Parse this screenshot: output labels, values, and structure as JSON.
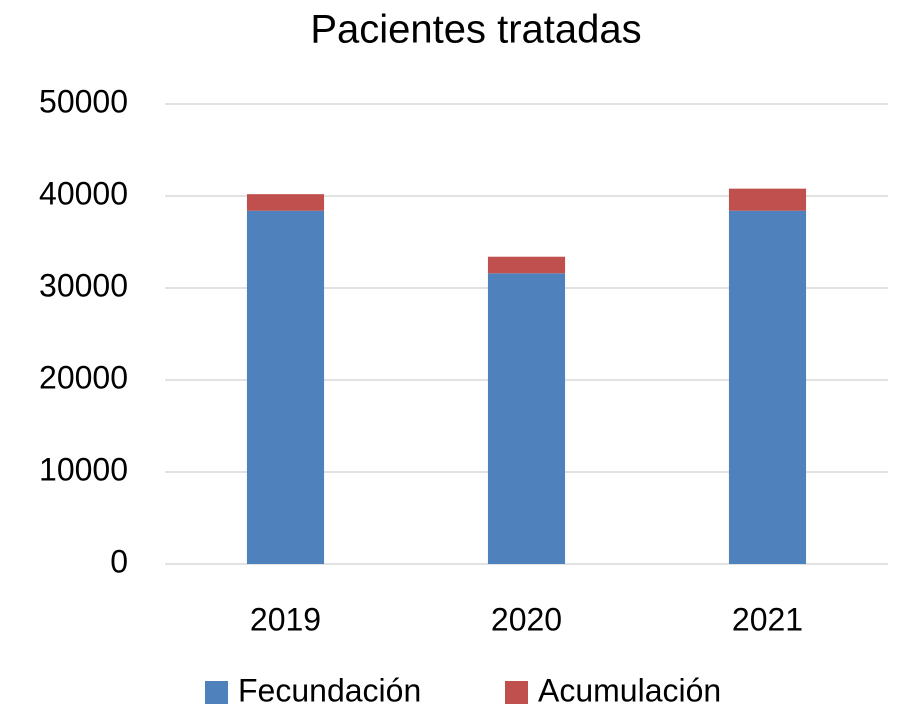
{
  "chart_data": {
    "type": "bar",
    "stacked": true,
    "title": "Pacientes tratadas",
    "categories": [
      "2019",
      "2020",
      "2021"
    ],
    "series": [
      {
        "name": "Fecundación",
        "color": "#4f81bd",
        "values": [
          38400,
          31600,
          38400
        ]
      },
      {
        "name": "Acumulación",
        "color": "#c0504d",
        "values": [
          1800,
          1800,
          2400
        ]
      }
    ],
    "ylim": [
      0,
      50000
    ],
    "yticks": [
      0,
      10000,
      20000,
      30000,
      40000,
      50000
    ],
    "grid": true,
    "legend": "bottom"
  }
}
